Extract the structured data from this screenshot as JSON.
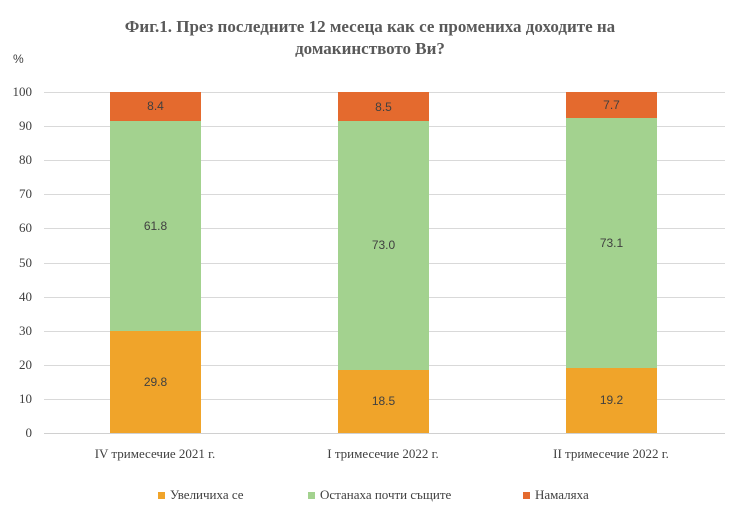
{
  "title_line1": "Фиг.1. През последните 12 месеца как се промениха доходите на",
  "title_line2": "домакинството Ви?",
  "y_unit": "%",
  "y_ticks": [
    "0",
    "10",
    "20",
    "30",
    "40",
    "50",
    "60",
    "70",
    "80",
    "90",
    "100"
  ],
  "colors": {
    "increased": "#F0A42A",
    "same": "#A3D28F",
    "decreased": "#E46A2E"
  },
  "categories": [
    "IV тримесечие 2021  г.",
    "I тримесечие 2022  г.",
    "II тримесечие 2022  г."
  ],
  "bars": [
    {
      "increased": "29.8",
      "same": "61.8",
      "decreased": "8.4"
    },
    {
      "increased": "18.5",
      "same": "73.0",
      "decreased": "8.5"
    },
    {
      "increased": "19.2",
      "same": "73.1",
      "decreased": "7.7"
    }
  ],
  "legend": {
    "increased": "Увеличиха  се",
    "same": "Останаха  почти  същите",
    "decreased": "Намаляха"
  },
  "chart_data": {
    "type": "bar",
    "stacked": true,
    "title": "Фиг.1. През последните 12 месеца как се промениха доходите на домакинството Ви?",
    "xlabel": "",
    "ylabel": "%",
    "ylim": [
      0,
      100
    ],
    "y_ticks": [
      0,
      10,
      20,
      30,
      40,
      50,
      60,
      70,
      80,
      90,
      100
    ],
    "grid": true,
    "legend_position": "bottom",
    "categories": [
      "IV тримесечие 2021 г.",
      "I тримесечие 2022 г.",
      "II тримесечие 2022 г."
    ],
    "series": [
      {
        "name": "Увеличиха се",
        "color": "#F0A42A",
        "values": [
          29.8,
          18.5,
          19.2
        ]
      },
      {
        "name": "Останаха почти същите",
        "color": "#A3D28F",
        "values": [
          61.8,
          73.0,
          73.1
        ]
      },
      {
        "name": "Намаляха",
        "color": "#E46A2E",
        "values": [
          8.4,
          8.5,
          7.7
        ]
      }
    ]
  }
}
